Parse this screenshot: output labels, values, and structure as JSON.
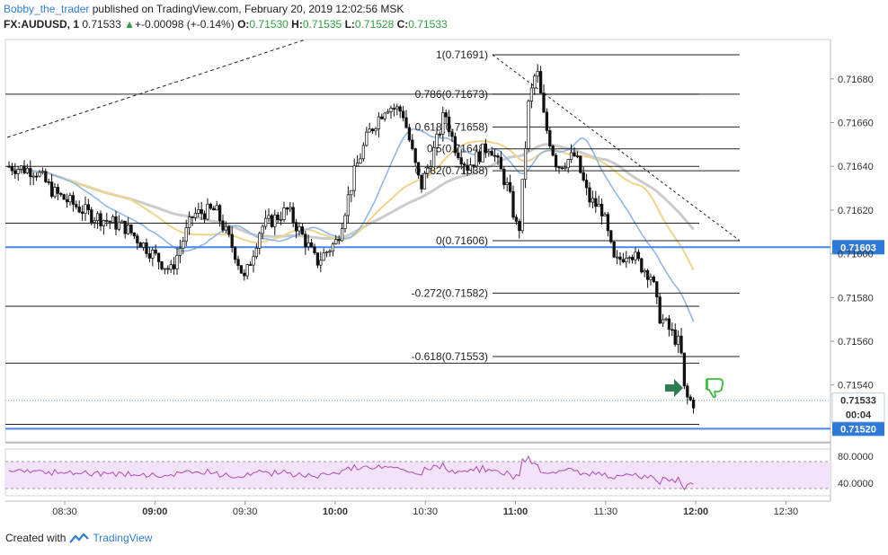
{
  "header": {
    "author": "Bobby_the_trader",
    "published_text": "published on TradingView.com, February 20, 2019 12:02:56 MSK",
    "symbol": "FX:AUDUSD, 1",
    "last": "0.71533",
    "change": "+-0.00098 (+-0.14%)",
    "o_label": "O:",
    "o": "0.71530",
    "h_label": "H:",
    "h": "0.71535",
    "l_label": "L:",
    "l": "0.71528",
    "c_label": "C:",
    "c": "0.71533"
  },
  "footer": {
    "created_with": "Created with",
    "brand": "TradingView"
  },
  "colors": {
    "up_candle": "#ffffff",
    "down_candle": "#111111",
    "ma_fast": "#8fb8e8",
    "ma_mid": "#f0d48a",
    "ma_slow": "#cccccc",
    "level": "#4a86e8",
    "rsi": "#b04ab0",
    "rsi_band": "#f3e3fa",
    "price_tag": "#2f7ad8",
    "arrow": "#2e7d4f",
    "thumb": "#3bbf3b"
  },
  "chart_data": {
    "type": "candlestick",
    "symbol": "FX:AUDUSD",
    "interval": "1",
    "ylim": [
      0.71514,
      0.71698
    ],
    "y_ticks": [
      "0.71680",
      "0.71660",
      "0.71640",
      "0.71620",
      "0.71600",
      "0.71580",
      "0.71560",
      "0.71540"
    ],
    "x_ticks": [
      {
        "t": "08:30",
        "bold": false
      },
      {
        "t": "09:00",
        "bold": true
      },
      {
        "t": "09:30",
        "bold": false
      },
      {
        "t": "10:00",
        "bold": true
      },
      {
        "t": "10:30",
        "bold": false
      },
      {
        "t": "11:00",
        "bold": true
      },
      {
        "t": "11:30",
        "bold": false
      },
      {
        "t": "12:00",
        "bold": true
      },
      {
        "t": "12:30",
        "bold": false
      }
    ],
    "price_labels": {
      "upper": "0.71603",
      "current": "0.71533",
      "countdown": "00:04",
      "lower": "0.71520"
    },
    "fib_levels": [
      {
        "label": "1(0.71691)",
        "value": 0.71691
      },
      {
        "label": "0.786(0.71673)",
        "value": 0.71673
      },
      {
        "label": "0.618(0.71658)",
        "value": 0.71658
      },
      {
        "label": "0.5(0.71648)",
        "value": 0.71648
      },
      {
        "label": "0.382(0.71638)",
        "value": 0.71638
      },
      {
        "label": "0(0.71606)",
        "value": 0.71606
      },
      {
        "label": "-0.272(0.71582)",
        "value": 0.71582
      },
      {
        "label": "-0.618(0.71553)",
        "value": 0.71553
      }
    ],
    "horizontal_levels": [
      0.71603,
      0.7152
    ],
    "rsi_ticks": [
      "80.0000",
      "40.0000"
    ]
  }
}
